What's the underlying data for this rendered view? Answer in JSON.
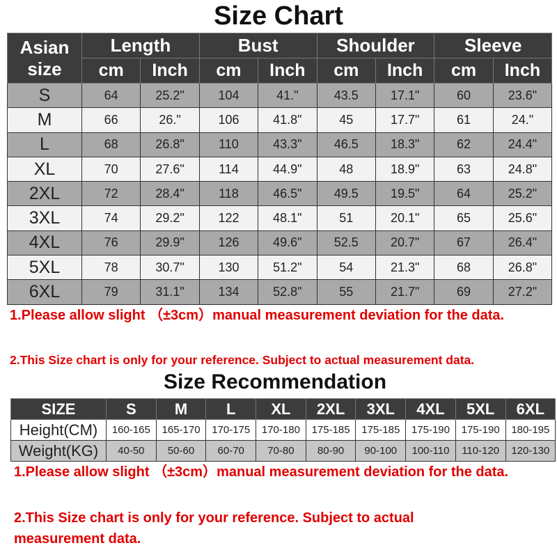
{
  "size_chart": {
    "title": "Size Chart",
    "header": {
      "size_col": [
        "Asian",
        "size"
      ],
      "groups": [
        "Length",
        "Bust",
        "Shoulder",
        "Sleeve"
      ],
      "units": [
        "cm",
        "Inch"
      ]
    },
    "rows": [
      [
        "S",
        "64",
        "25.2\"",
        "104",
        "41.\"",
        "43.5",
        "17.1\"",
        "60",
        "23.6\""
      ],
      [
        "M",
        "66",
        "26.\"",
        "106",
        "41.8\"",
        "45",
        "17.7\"",
        "61",
        "24.\""
      ],
      [
        "L",
        "68",
        "26.8\"",
        "110",
        "43.3\"",
        "46.5",
        "18.3\"",
        "62",
        "24.4\""
      ],
      [
        "XL",
        "70",
        "27.6\"",
        "114",
        "44.9\"",
        "48",
        "18.9\"",
        "63",
        "24.8\""
      ],
      [
        "2XL",
        "72",
        "28.4\"",
        "118",
        "46.5\"",
        "49.5",
        "19.5\"",
        "64",
        "25.2\""
      ],
      [
        "3XL",
        "74",
        "29.2\"",
        "122",
        "48.1\"",
        "51",
        "20.1\"",
        "65",
        "25.6\""
      ],
      [
        "4XL",
        "76",
        "29.9\"",
        "126",
        "49.6\"",
        "52.5",
        "20.7\"",
        "67",
        "26.4\""
      ],
      [
        "5XL",
        "78",
        "30.7\"",
        "130",
        "51.2\"",
        "54",
        "21.3\"",
        "68",
        "26.8\""
      ],
      [
        "6XL",
        "79",
        "31.1\"",
        "134",
        "52.8\"",
        "55",
        "21.7\"",
        "69",
        "27.2\""
      ]
    ],
    "notes": [
      "1.Please allow slight （±3cm）manual measurement deviation for the data.",
      "2.This Size chart is only for your reference. Subject to actual measurement data."
    ]
  },
  "size_recommendation": {
    "title": "Size Recommendation",
    "header": [
      "SIZE",
      "S",
      "M",
      "L",
      "XL",
      "2XL",
      "3XL",
      "4XL",
      "5XL",
      "6XL"
    ],
    "rows": [
      [
        "Height(CM)",
        "160-165",
        "165-170",
        "170-175",
        "170-180",
        "175-185",
        "175-185",
        "175-190",
        "175-190",
        "180-195"
      ],
      [
        "Weight(KG)",
        "40-50",
        "50-60",
        "60-70",
        "70-80",
        "80-90",
        "90-100",
        "100-110",
        "110-120",
        "120-130"
      ]
    ],
    "notes": [
      "1.Please allow slight （±3cm）manual measurement deviation for the data.",
      "2.This Size chart is only for your reference. Subject to actual measurement data."
    ]
  },
  "colors": {
    "header_bg": "#3c3c3c",
    "row_gray": "#a9a9a9",
    "row_light": "#f2f2f2",
    "note_red": "#e00000"
  }
}
